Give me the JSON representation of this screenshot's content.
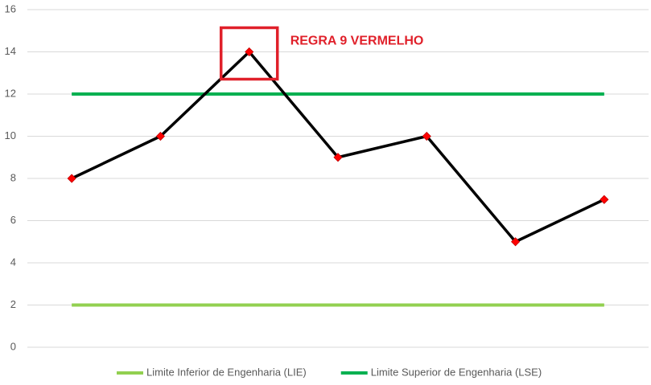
{
  "chart_data": {
    "type": "line",
    "categories": [
      null,
      null,
      null,
      null,
      null,
      null,
      null
    ],
    "series": [
      {
        "color": "#000000",
        "marker_color": "#ff0000",
        "values": [
          8,
          10,
          14,
          9,
          10,
          5,
          7
        ]
      },
      {
        "name": "Limite Inferior de Engenharia (LIE)",
        "color": "#92d050",
        "values": [
          2,
          2,
          2,
          2,
          2,
          2,
          2
        ]
      },
      {
        "name": "Limite Superior de Engenharia (LSE)",
        "color": "#00b050",
        "values": [
          12,
          12,
          12,
          12,
          12,
          12,
          12
        ]
      }
    ],
    "annotation": {
      "text": "REGRA 9 VERMELHO",
      "color": "#e0202a"
    },
    "ylim": [
      0,
      16
    ],
    "yticks": [
      0,
      2,
      4,
      6,
      8,
      10,
      12,
      14,
      16
    ],
    "grid": true,
    "legend": "bottom"
  }
}
